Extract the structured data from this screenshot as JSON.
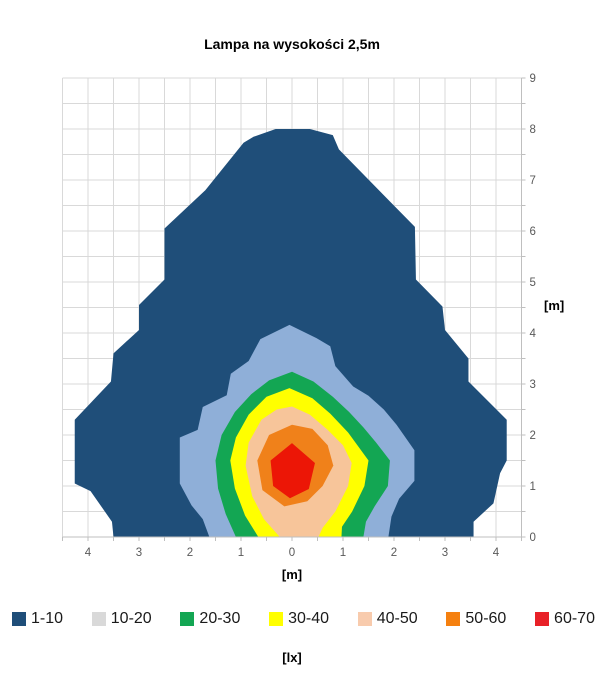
{
  "title": "Lampa na wysokości 2,5m",
  "axes": {
    "x": {
      "title": "[m]",
      "min": -4.5,
      "max": 4.5,
      "grid_step": 0.5,
      "tick_values": [
        -4,
        -3,
        -2,
        -1,
        0,
        1,
        2,
        3,
        4
      ],
      "tick_labels": [
        "4",
        "3",
        "2",
        "1",
        "0",
        "1",
        "2",
        "3",
        "4"
      ]
    },
    "y": {
      "title": "[m]",
      "min": 0,
      "max": 9,
      "grid_step": 0.5,
      "tick_values": [
        0,
        1,
        2,
        3,
        4,
        5,
        6,
        7,
        8,
        9
      ],
      "tick_labels": [
        "0",
        "1",
        "2",
        "3",
        "4",
        "5",
        "6",
        "7",
        "8",
        "9"
      ]
    }
  },
  "legend": {
    "unit_label": "[lx]",
    "items": [
      {
        "label": "1-10",
        "swatch_color": "#1F4E79"
      },
      {
        "label": "10-20",
        "swatch_color": "#D9D9D9"
      },
      {
        "label": "20-30",
        "swatch_color": "#13A653"
      },
      {
        "label": "30-40",
        "swatch_color": "#FFFF00"
      },
      {
        "label": "40-50",
        "swatch_color": "#F8CBAD"
      },
      {
        "label": "50-60",
        "swatch_color": "#F5800F"
      },
      {
        "label": "60-70",
        "swatch_color": "#E82128"
      }
    ]
  },
  "colors": {
    "grid": "#D9D9D9",
    "axis": "#BFBFBF",
    "tick_text": "#595959",
    "title_text": "#000000"
  },
  "chart_data": {
    "type": "filled_contour",
    "title": "Lampa na wysokości 2,5m",
    "xlabel": "[m]",
    "ylabel": "[m]",
    "value_unit": "lx",
    "xlim": [
      -4.5,
      4.5
    ],
    "ylim": [
      0,
      9
    ],
    "grid": true,
    "legend_position": "bottom",
    "x_tick_labels_shown_as_absolute": true,
    "levels_lx": [
      1,
      10,
      20,
      30,
      40,
      50,
      60,
      70
    ],
    "peak_band": "60-70",
    "bands": [
      {
        "range": "1-10",
        "min": 1,
        "max": 10,
        "fill": "#1F4E79",
        "polygon": [
          [
            -3.5,
            0
          ],
          [
            -3.53,
            0.3
          ],
          [
            -3.95,
            0.9
          ],
          [
            -4.26,
            1.05
          ],
          [
            -4.26,
            2.3
          ],
          [
            -3.55,
            3.05
          ],
          [
            -3.5,
            3.6
          ],
          [
            -3.0,
            4.06
          ],
          [
            -3.0,
            4.55
          ],
          [
            -2.5,
            5.05
          ],
          [
            -2.5,
            6.05
          ],
          [
            -1.7,
            6.8
          ],
          [
            -0.95,
            7.73
          ],
          [
            -0.75,
            7.85
          ],
          [
            -0.32,
            8.0
          ],
          [
            0.35,
            8.0
          ],
          [
            0.8,
            7.88
          ],
          [
            0.92,
            7.6
          ],
          [
            2.41,
            6.08
          ],
          [
            2.43,
            5.05
          ],
          [
            2.95,
            4.52
          ],
          [
            3.0,
            4.06
          ],
          [
            3.46,
            3.5
          ],
          [
            3.46,
            3.05
          ],
          [
            4.21,
            2.3
          ],
          [
            4.21,
            1.5
          ],
          [
            4.08,
            1.25
          ],
          [
            3.95,
            0.66
          ],
          [
            3.56,
            0.3
          ],
          [
            3.56,
            0
          ]
        ]
      },
      {
        "range": "10-20",
        "min": 10,
        "max": 20,
        "fill": "#8FAFD8",
        "polygon": [
          [
            -1.62,
            0
          ],
          [
            -1.75,
            0.35
          ],
          [
            -1.97,
            0.62
          ],
          [
            -2.2,
            1.05
          ],
          [
            -2.2,
            1.95
          ],
          [
            -1.85,
            2.1
          ],
          [
            -1.75,
            2.55
          ],
          [
            -1.28,
            2.78
          ],
          [
            -1.2,
            3.2
          ],
          [
            -0.85,
            3.45
          ],
          [
            -0.62,
            3.88
          ],
          [
            -0.05,
            4.16
          ],
          [
            0.48,
            3.9
          ],
          [
            0.75,
            3.74
          ],
          [
            0.85,
            3.35
          ],
          [
            1.2,
            2.95
          ],
          [
            1.5,
            2.77
          ],
          [
            1.8,
            2.5
          ],
          [
            2.05,
            2.2
          ],
          [
            2.4,
            1.7
          ],
          [
            2.4,
            1.1
          ],
          [
            2.1,
            0.75
          ],
          [
            1.95,
            0.4
          ],
          [
            1.89,
            0
          ]
        ]
      },
      {
        "range": "20-30",
        "min": 20,
        "max": 30,
        "fill": "#13A653",
        "polygon": [
          [
            -1.1,
            0
          ],
          [
            -1.3,
            0.45
          ],
          [
            -1.45,
            0.95
          ],
          [
            -1.5,
            1.5
          ],
          [
            -1.38,
            2.0
          ],
          [
            -1.12,
            2.45
          ],
          [
            -0.8,
            2.8
          ],
          [
            -0.45,
            3.07
          ],
          [
            0.0,
            3.24
          ],
          [
            0.42,
            3.05
          ],
          [
            0.8,
            2.75
          ],
          [
            1.12,
            2.45
          ],
          [
            1.4,
            2.15
          ],
          [
            1.65,
            1.85
          ],
          [
            1.92,
            1.5
          ],
          [
            1.88,
            1.0
          ],
          [
            1.62,
            0.6
          ],
          [
            1.45,
            0.3
          ],
          [
            1.4,
            0
          ]
        ]
      },
      {
        "range": "30-40",
        "min": 30,
        "max": 40,
        "fill": "#FFFF00",
        "polygon": [
          [
            -0.66,
            0
          ],
          [
            -0.92,
            0.42
          ],
          [
            -1.12,
            0.95
          ],
          [
            -1.21,
            1.5
          ],
          [
            -1.1,
            1.95
          ],
          [
            -0.85,
            2.4
          ],
          [
            -0.5,
            2.75
          ],
          [
            -0.05,
            2.92
          ],
          [
            0.4,
            2.72
          ],
          [
            0.75,
            2.42
          ],
          [
            1.1,
            2.05
          ],
          [
            1.5,
            1.5
          ],
          [
            1.42,
            1.0
          ],
          [
            1.18,
            0.5
          ],
          [
            0.98,
            0.2
          ],
          [
            0.97,
            0
          ]
        ]
      },
      {
        "range": "40-50",
        "min": 40,
        "max": 50,
        "fill": "#F7C59A",
        "polygon": [
          [
            -0.24,
            0
          ],
          [
            -0.55,
            0.35
          ],
          [
            -0.78,
            0.8
          ],
          [
            -0.91,
            1.4
          ],
          [
            -0.85,
            1.85
          ],
          [
            -0.6,
            2.3
          ],
          [
            -0.3,
            2.5
          ],
          [
            0.0,
            2.56
          ],
          [
            0.35,
            2.4
          ],
          [
            0.7,
            2.1
          ],
          [
            1.0,
            1.8
          ],
          [
            1.17,
            1.45
          ],
          [
            1.1,
            1.0
          ],
          [
            0.85,
            0.5
          ],
          [
            0.6,
            0.18
          ],
          [
            0.52,
            0
          ]
        ]
      },
      {
        "range": "50-60",
        "min": 50,
        "max": 60,
        "fill": "#F0811A",
        "polygon": [
          [
            0.0,
            2.2
          ],
          [
            -0.45,
            2.0
          ],
          [
            -0.68,
            1.5
          ],
          [
            -0.58,
            0.92
          ],
          [
            -0.15,
            0.6
          ],
          [
            0.3,
            0.7
          ],
          [
            0.6,
            1.0
          ],
          [
            0.81,
            1.4
          ],
          [
            0.7,
            1.8
          ],
          [
            0.4,
            2.12
          ]
        ]
      },
      {
        "range": "60-70",
        "min": 60,
        "max": 70,
        "fill": "#EC1606",
        "polygon": [
          [
            0.0,
            1.84
          ],
          [
            -0.42,
            1.5
          ],
          [
            -0.37,
            1.0
          ],
          [
            -0.04,
            0.76
          ],
          [
            0.33,
            0.94
          ],
          [
            0.45,
            1.45
          ]
        ]
      }
    ]
  }
}
